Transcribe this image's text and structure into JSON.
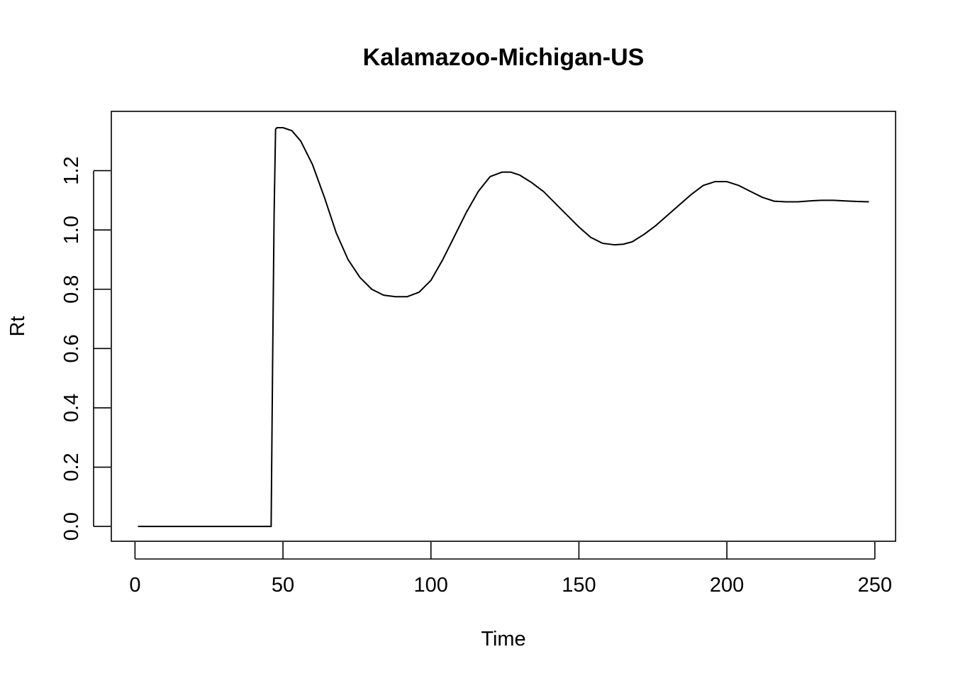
{
  "chart_data": {
    "type": "line",
    "title": "Kalamazoo-Michigan-US",
    "xlabel": "Time",
    "ylabel": "Rt",
    "xlim": [
      -8,
      257
    ],
    "ylim": [
      -0.05,
      1.4
    ],
    "x_ticks": [
      0,
      50,
      100,
      150,
      200,
      250
    ],
    "y_ticks": [
      0.0,
      0.2,
      0.4,
      0.6,
      0.8,
      1.0,
      1.2
    ],
    "x_tick_labels": [
      "0",
      "50",
      "100",
      "150",
      "200",
      "250"
    ],
    "y_tick_labels": [
      "0.0",
      "0.2",
      "0.4",
      "0.6",
      "0.8",
      "1.0",
      "1.2"
    ],
    "grid": false,
    "legend": "none",
    "color": "#000000",
    "series": [
      {
        "x": [
          1,
          10,
          20,
          30,
          40,
          46,
          46.5,
          47,
          47.5,
          48,
          50,
          53,
          56,
          60,
          64,
          68,
          72,
          76,
          80,
          84,
          88,
          92,
          96,
          100,
          104,
          108,
          112,
          116,
          120,
          124,
          127,
          130,
          134,
          138,
          142,
          146,
          150,
          154,
          158,
          162,
          165,
          168,
          172,
          176,
          180,
          184,
          188,
          192,
          196,
          200,
          204,
          208,
          212,
          216,
          220,
          224,
          228,
          232,
          236,
          240,
          244,
          248
        ],
        "y": [
          0.0,
          0.0,
          0.0,
          0.0,
          0.0,
          0.0,
          0.55,
          1.05,
          1.34,
          1.345,
          1.345,
          1.335,
          1.3,
          1.22,
          1.11,
          0.99,
          0.9,
          0.84,
          0.8,
          0.78,
          0.775,
          0.775,
          0.79,
          0.83,
          0.9,
          0.98,
          1.06,
          1.13,
          1.18,
          1.195,
          1.195,
          1.185,
          1.16,
          1.13,
          1.09,
          1.05,
          1.01,
          0.975,
          0.955,
          0.95,
          0.952,
          0.96,
          0.985,
          1.015,
          1.05,
          1.085,
          1.12,
          1.15,
          1.163,
          1.163,
          1.15,
          1.13,
          1.11,
          1.097,
          1.095,
          1.095,
          1.098,
          1.1,
          1.1,
          1.098,
          1.096,
          1.095
        ]
      }
    ]
  }
}
